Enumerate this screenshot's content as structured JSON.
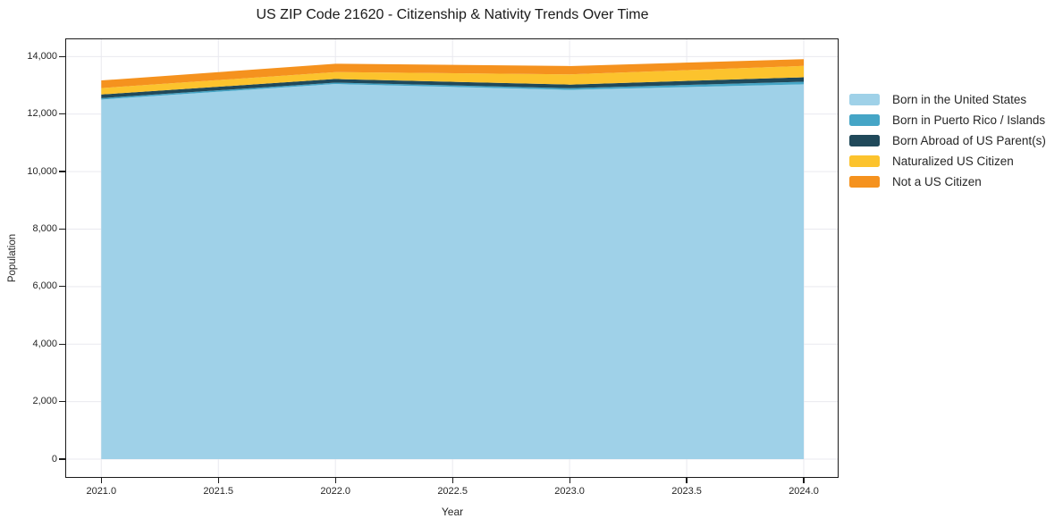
{
  "chart_data": {
    "type": "area",
    "stacked": true,
    "title": "US ZIP Code 21620 - Citizenship & Nativity Trends Over Time",
    "xlabel": "Year",
    "ylabel": "Population",
    "x": [
      2021,
      2022,
      2023,
      2024
    ],
    "series": [
      {
        "name": "Born in the United States",
        "color": "#9fd1e8",
        "values": [
          12505,
          13045,
          12840,
          13035
        ]
      },
      {
        "name": "Born in Puerto Rico / Islands",
        "color": "#45a5c6",
        "values": [
          50,
          50,
          60,
          90
        ]
      },
      {
        "name": "Born Abroad of US Parent(s)",
        "color": "#20495a",
        "values": [
          125,
          125,
          125,
          155
        ]
      },
      {
        "name": "Naturalized US Citizen",
        "color": "#fcc32d",
        "values": [
          225,
          240,
          355,
          395
        ]
      },
      {
        "name": "Not a US Citizen",
        "color": "#f5921e",
        "values": [
          265,
          290,
          290,
          235
        ]
      }
    ],
    "totals": [
      13170,
      13750,
      13670,
      13910
    ],
    "xlim": [
      2020.85,
      2024.145
    ],
    "ylim": [
      -620,
      14600
    ],
    "xticks": {
      "values": [
        2021.0,
        2021.5,
        2022.0,
        2022.5,
        2023.0,
        2023.5,
        2024.0
      ],
      "labels": [
        "2021.0",
        "2021.5",
        "2022.0",
        "2022.5",
        "2023.0",
        "2023.5",
        "2024.0"
      ]
    },
    "yticks": {
      "values": [
        0,
        2000,
        4000,
        6000,
        8000,
        10000,
        12000,
        14000
      ],
      "labels": [
        "0",
        "2,000",
        "4,000",
        "6,000",
        "8,000",
        "10,000",
        "12,000",
        "14,000"
      ]
    },
    "grid": true,
    "legend_position": "center right outside",
    "colors": {
      "axes_border": "#1a1a1a",
      "grid": "#e9e9ef",
      "text": "#262626",
      "background": "#ffffff"
    }
  }
}
